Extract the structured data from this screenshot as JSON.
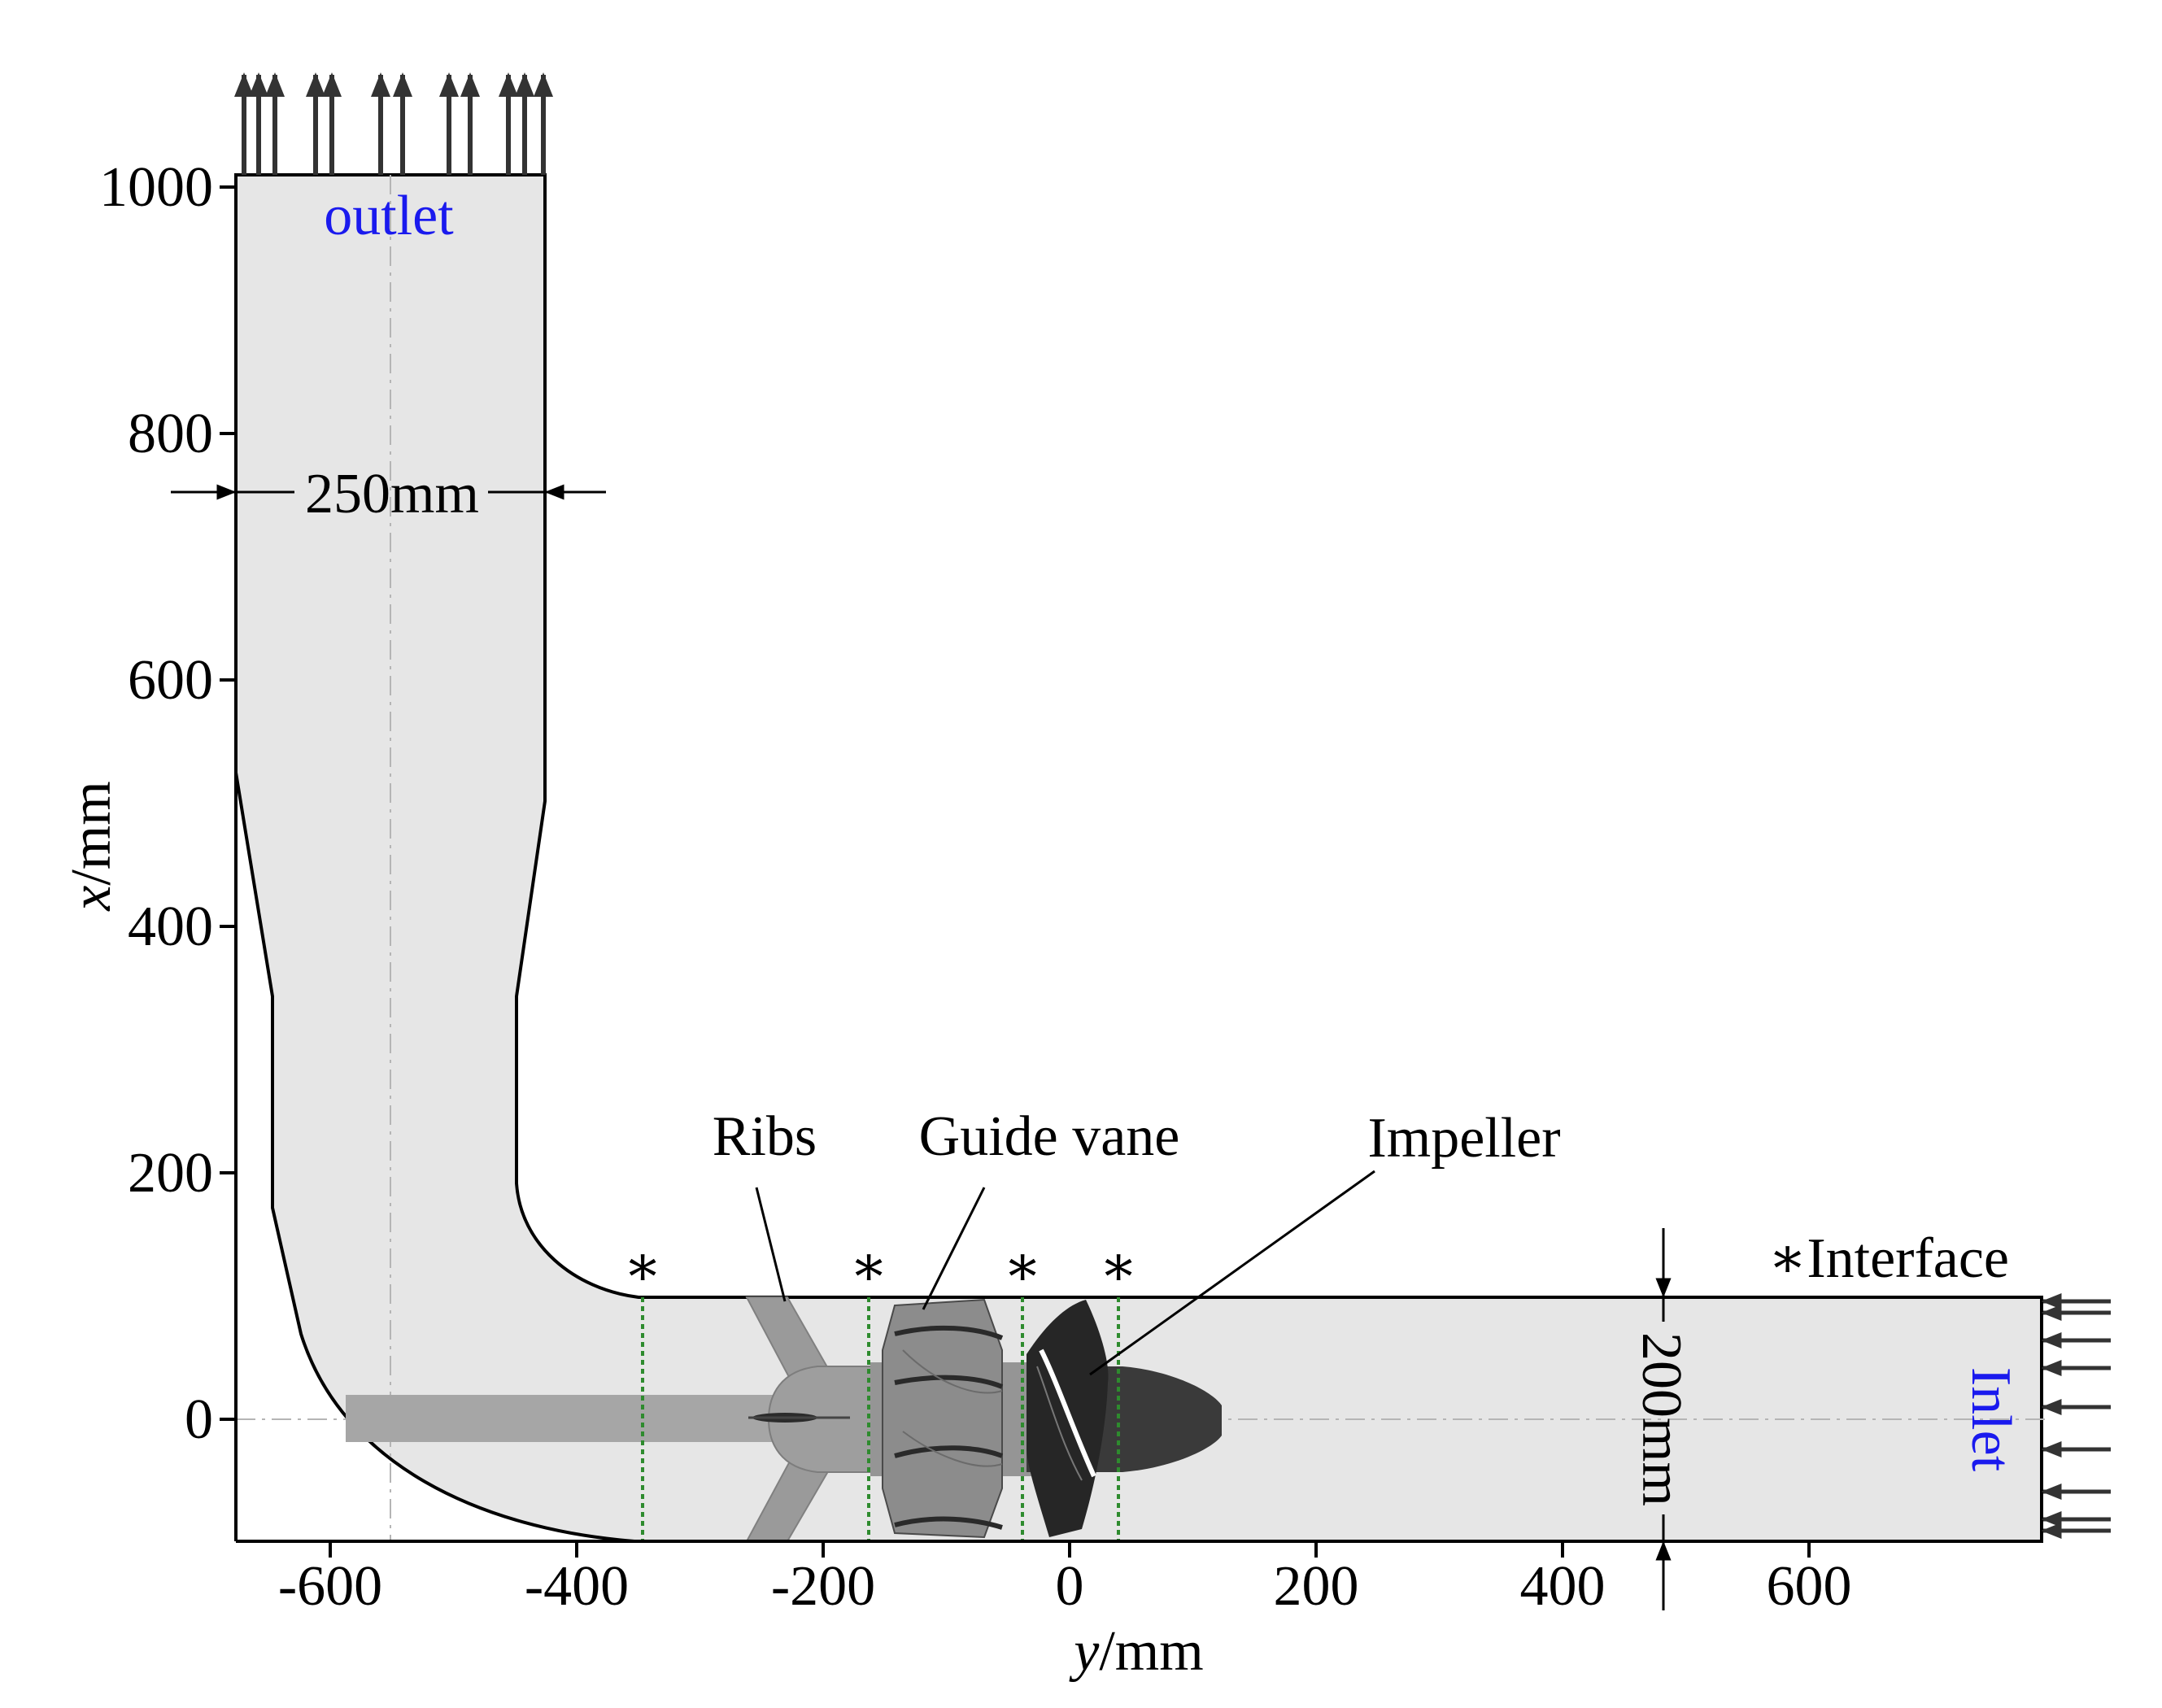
{
  "figure": {
    "x_axis": {
      "label_var": "y",
      "label_unit": "/mm",
      "ticks": [
        "-600",
        "-400",
        "-200",
        "0",
        "200",
        "400",
        "600"
      ]
    },
    "y_axis": {
      "label_var": "x",
      "label_unit": "/mm",
      "ticks": [
        "0",
        "200",
        "400",
        "600",
        "800",
        "1000"
      ]
    },
    "labels": {
      "outlet": "outlet",
      "inlet": "Inlet",
      "ribs": "Ribs",
      "guide_vane": "Guide vane",
      "impeller": "Impeller",
      "interface": "∗Interface",
      "interface_mark": "∗",
      "width_outlet": "250mm",
      "width_inlet": "200mm"
    },
    "colors": {
      "duct_fill": "#e6e6e6",
      "shaft": "#a6a6a6",
      "hub": "#9e9e9e",
      "guide_vane": "#8c8c8c",
      "impeller": "#333333",
      "interface_line": "#2e8b2e",
      "label_blue": "#1a1aee"
    }
  }
}
